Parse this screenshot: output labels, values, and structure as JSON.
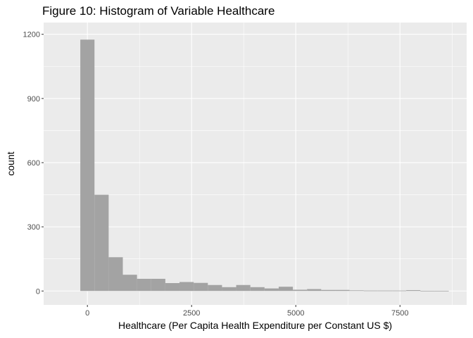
{
  "chart_data": {
    "type": "bar",
    "title": "Figure 10: Histogram of Variable Healthcare",
    "xlabel": "Healthcare (Per Capita Health Expenditure per Constant US $)",
    "ylabel": "count",
    "xlim": [
      -1050,
      9100
    ],
    "ylim": [
      -65,
      1255
    ],
    "x_ticks": [
      0,
      2500,
      5000,
      7500
    ],
    "x_tick_labels": [
      "0",
      "2500",
      "5000",
      "7500"
    ],
    "y_ticks": [
      0,
      300,
      600,
      900,
      1200
    ],
    "y_tick_labels": [
      "0",
      "300",
      "600",
      "900",
      "1200"
    ],
    "bin_width": 340,
    "bins": [
      {
        "x0": -170,
        "x1": 170,
        "count": 1175
      },
      {
        "x0": 170,
        "x1": 510,
        "count": 450
      },
      {
        "x0": 510,
        "x1": 850,
        "count": 158
      },
      {
        "x0": 850,
        "x1": 1190,
        "count": 76
      },
      {
        "x0": 1190,
        "x1": 1530,
        "count": 57
      },
      {
        "x0": 1530,
        "x1": 1870,
        "count": 57
      },
      {
        "x0": 1870,
        "x1": 2210,
        "count": 37
      },
      {
        "x0": 2210,
        "x1": 2550,
        "count": 42
      },
      {
        "x0": 2550,
        "x1": 2890,
        "count": 38
      },
      {
        "x0": 2890,
        "x1": 3230,
        "count": 28
      },
      {
        "x0": 3230,
        "x1": 3570,
        "count": 18
      },
      {
        "x0": 3570,
        "x1": 3910,
        "count": 28
      },
      {
        "x0": 3910,
        "x1": 4250,
        "count": 18
      },
      {
        "x0": 4250,
        "x1": 4590,
        "count": 12
      },
      {
        "x0": 4590,
        "x1": 4930,
        "count": 20
      },
      {
        "x0": 4930,
        "x1": 5270,
        "count": 6
      },
      {
        "x0": 5270,
        "x1": 5610,
        "count": 9
      },
      {
        "x0": 5610,
        "x1": 5950,
        "count": 5
      },
      {
        "x0": 5950,
        "x1": 6290,
        "count": 5
      },
      {
        "x0": 6290,
        "x1": 6630,
        "count": 3
      },
      {
        "x0": 6630,
        "x1": 6970,
        "count": 2
      },
      {
        "x0": 6970,
        "x1": 7310,
        "count": 2
      },
      {
        "x0": 7310,
        "x1": 7650,
        "count": 2
      },
      {
        "x0": 7650,
        "x1": 7990,
        "count": 4
      },
      {
        "x0": 7990,
        "x1": 8330,
        "count": 1
      },
      {
        "x0": 8330,
        "x1": 8670,
        "count": 1
      }
    ],
    "grid": true,
    "legend": "none",
    "colors": {
      "panel_background": "#ebebeb",
      "grid_major": "#ffffff",
      "bar_fill": "#a3a3a3",
      "tick_text": "#4d4d4d",
      "tick_mark": "#333333"
    }
  }
}
